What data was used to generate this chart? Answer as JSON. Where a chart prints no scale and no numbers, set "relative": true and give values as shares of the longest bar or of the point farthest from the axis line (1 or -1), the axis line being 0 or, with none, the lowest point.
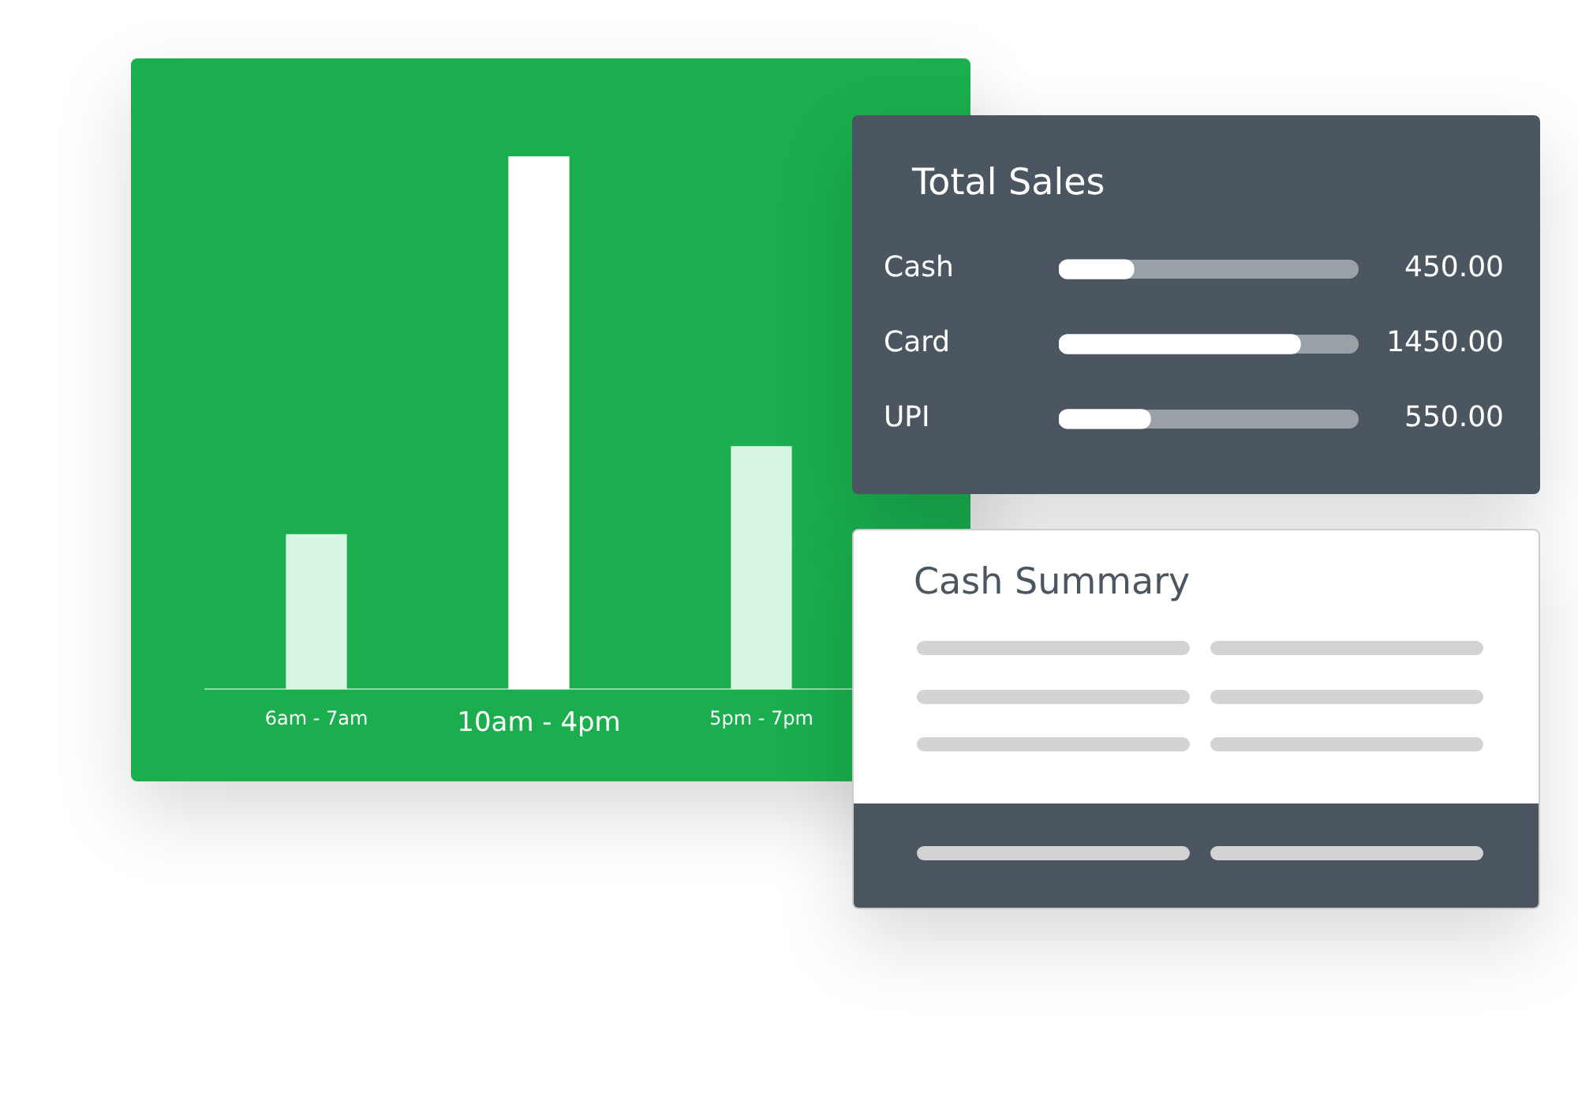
{
  "chart_data": [
    {
      "type": "bar",
      "categories": [
        "6am - 7am",
        "10am - 4pm",
        "5pm - 7pm"
      ],
      "relative": true,
      "colors": [
        "#d8f6e4",
        "#ffffff",
        "#d8f6e4"
      ],
      "values": [
        0.29,
        1,
        0.455
      ],
      "legend": false
    },
    {
      "type": "bar",
      "orientation": "horizontal",
      "title": "Total Sales",
      "categories": [
        "Cash",
        "Card",
        "UPI"
      ],
      "color": "#ffffff",
      "values": [
        450,
        1450,
        550
      ],
      "value_labels": [
        "450.00",
        "1450.00",
        "550.00"
      ],
      "xlim": [
        0,
        1800
      ],
      "tick_labels": "y",
      "legend": false
    },
    {
      "type": "other",
      "title": "Cash Summary"
    }
  ]
}
